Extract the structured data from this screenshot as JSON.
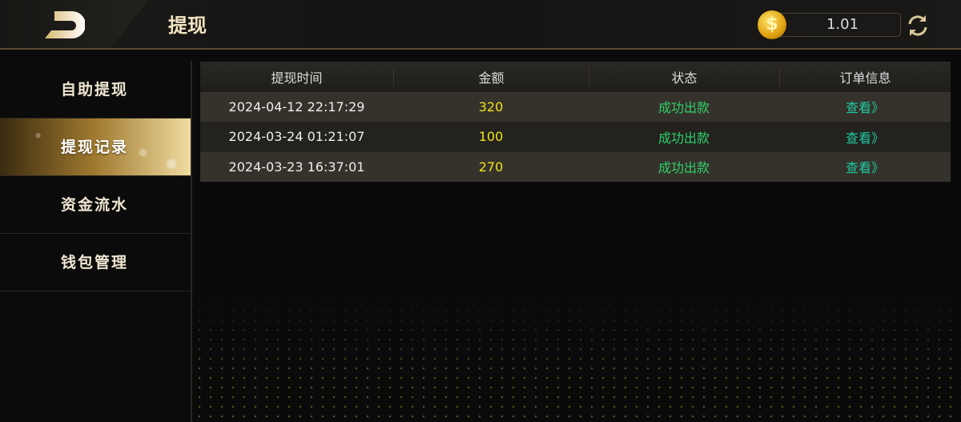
{
  "header": {
    "title": "提现",
    "balance": "1.01",
    "coin_icon": "dollar-coin-icon",
    "refresh_icon": "refresh-icon",
    "back_icon": "back-icon"
  },
  "sidebar": {
    "items": [
      {
        "label": "自助提现"
      },
      {
        "label": "提现记录",
        "active": true
      },
      {
        "label": "资金流水"
      },
      {
        "label": "钱包管理"
      }
    ]
  },
  "table": {
    "columns": [
      "提现时间",
      "金额",
      "状态",
      "订单信息"
    ],
    "rows": [
      {
        "time": "2024-04-12 22:17:29",
        "amount": "320",
        "status": "成功出款",
        "action": "查看》"
      },
      {
        "time": "2024-03-24 01:21:07",
        "amount": "100",
        "status": "成功出款",
        "action": "查看》"
      },
      {
        "time": "2024-03-23 16:37:01",
        "amount": "270",
        "status": "成功出款",
        "action": "查看》"
      }
    ]
  },
  "colors": {
    "accent_gold": "#f0dca0",
    "amount": "#f2e21a",
    "status_success": "#2fd16a",
    "link": "#1fc9a0"
  }
}
